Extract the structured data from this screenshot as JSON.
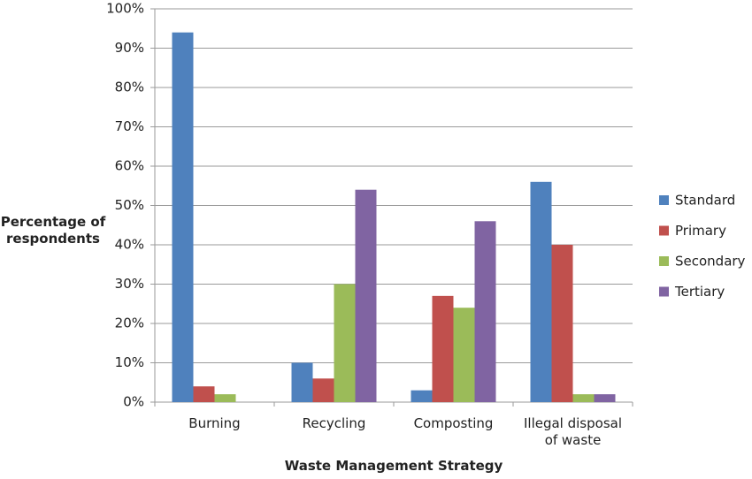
{
  "chart_data": {
    "type": "bar",
    "x_label": "Waste Management Strategy",
    "y_label": "Percentage of respondents",
    "categories": [
      "Burning",
      "Recycling",
      "Composting",
      "Illegal disposal of waste"
    ],
    "series": [
      {
        "name": "Standard",
        "color": "#4f81bd",
        "values": [
          94,
          10,
          3,
          56
        ]
      },
      {
        "name": "Primary",
        "color": "#c0504d",
        "values": [
          4,
          6,
          27,
          40
        ]
      },
      {
        "name": "Secondary",
        "color": "#9bbb59",
        "values": [
          2,
          30,
          24,
          2
        ]
      },
      {
        "name": "Tertiary",
        "color": "#8064a2",
        "values": [
          0,
          54,
          46,
          2
        ]
      }
    ],
    "ylim": [
      0,
      100
    ],
    "yticks": [
      {
        "value": 0,
        "label": "0%"
      },
      {
        "value": 10,
        "label": "10%"
      },
      {
        "value": 20,
        "label": "20%"
      },
      {
        "value": 30,
        "label": "30%"
      },
      {
        "value": 40,
        "label": "40%"
      },
      {
        "value": 50,
        "label": "50%"
      },
      {
        "value": 60,
        "label": "60%"
      },
      {
        "value": 70,
        "label": "70%"
      },
      {
        "value": 80,
        "label": "80%"
      },
      {
        "value": 90,
        "label": "90%"
      },
      {
        "value": 100,
        "label": "100%"
      }
    ],
    "grid": true,
    "legend": "right"
  }
}
